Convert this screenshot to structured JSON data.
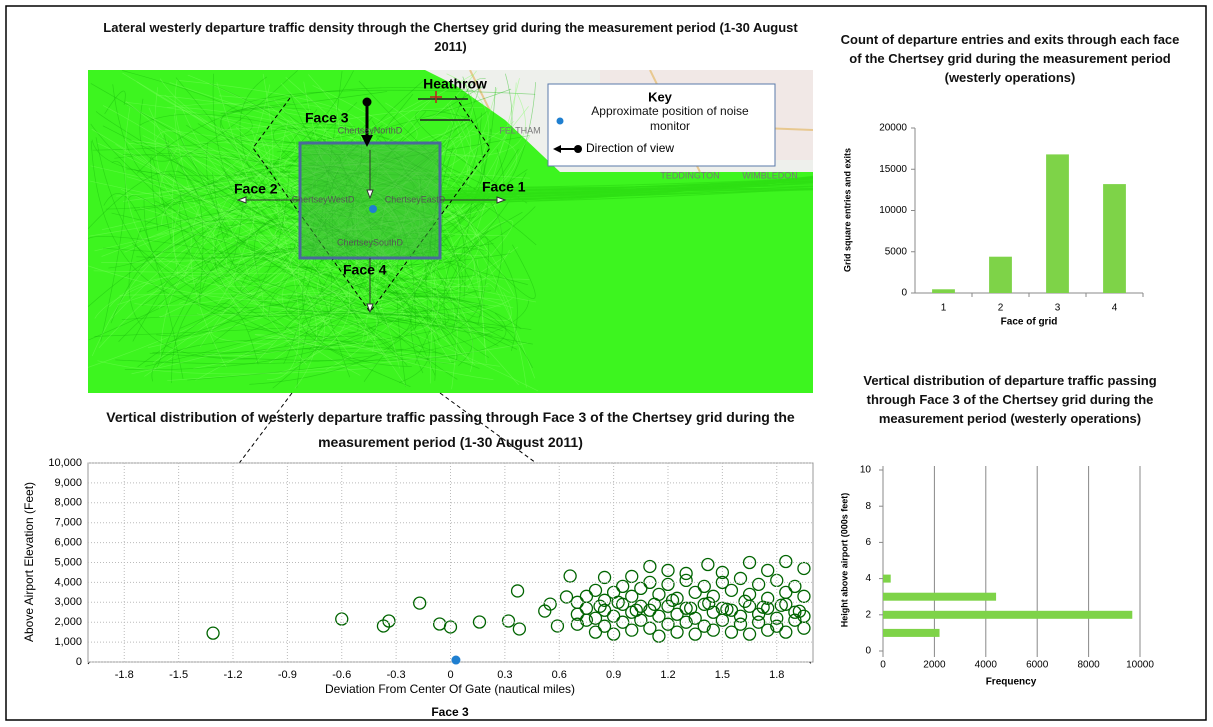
{
  "map": {
    "title": "Lateral westerly departure traffic density through the Chertsey grid during the measurement period (1-30 August 2011)",
    "airport": "Heathrow",
    "faces": [
      "Face 1",
      "Face 2",
      "Face 3",
      "Face 4"
    ],
    "gates": [
      "ChertseyNorthD",
      "ChertseyWestD",
      "ChertseyEastD",
      "ChertseySouthD"
    ],
    "places": [
      "FELTHAM",
      "TEDDINGTON",
      "WIMBLEDON"
    ],
    "key": {
      "title": "Key",
      "monitor": "Approximate position of noise monitor",
      "view": "Direction of view"
    }
  },
  "chart_data": [
    {
      "type": "bar",
      "title": "Count of departure entries and exits through each face of the Chertsey grid during the measurement period (westerly operations)",
      "x_label": "Face of grid",
      "y_label": "Grid square entries and exits",
      "categories": [
        "1",
        "2",
        "3",
        "4"
      ],
      "values": [
        450,
        4400,
        16800,
        13200
      ],
      "color": "#7ed348",
      "ylim": [
        0,
        20000
      ],
      "yticks": [
        0,
        5000,
        10000,
        15000,
        20000
      ]
    },
    {
      "type": "scatter",
      "title": "Vertical distribution of westerly departure traffic passing through Face 3 of the Chertsey grid during the measurement period (1-30 August 2011)",
      "x_label": "Deviation From Center Of Gate (nautical miles)",
      "y_label": "Above Airport Elevation (Feet)",
      "x": [
        -1.31,
        -0.6,
        -0.37,
        -0.34,
        -0.17,
        -0.06,
        0,
        0.16,
        0.32,
        0.37,
        0.38,
        0.52,
        0.55,
        0.59,
        0.64,
        0.66,
        0.7,
        0.7,
        0.7,
        0.75,
        0.75,
        0.75,
        0.8,
        0.8,
        0.8,
        0.85,
        0.85,
        0.85,
        0.9,
        0.9,
        0.9,
        0.95,
        0.95,
        0.95,
        1.0,
        1.0,
        1.0,
        1.05,
        1.05,
        1.05,
        1.1,
        1.1,
        1.1,
        1.15,
        1.15,
        1.15,
        1.2,
        1.2,
        1.2,
        1.25,
        1.25,
        1.25,
        1.3,
        1.3,
        1.3,
        1.35,
        1.35,
        1.35,
        1.4,
        1.4,
        1.4,
        1.45,
        1.45,
        1.45,
        1.5,
        1.5,
        1.5,
        1.55,
        1.55,
        1.55,
        1.6,
        1.6,
        1.6,
        1.65,
        1.65,
        1.65,
        1.7,
        1.7,
        1.7,
        1.75,
        1.75,
        1.75,
        1.8,
        1.8,
        1.8,
        1.85,
        1.85,
        1.85,
        1.9,
        1.9,
        1.9,
        1.95,
        1.95,
        1.95,
        0.825,
        0.925,
        1.025,
        1.125,
        1.225,
        1.325,
        1.425,
        1.525,
        1.625,
        1.725,
        1.825,
        1.925,
        1.0,
        1.2,
        1.42,
        1.5,
        1.65,
        1.85,
        1.75,
        1.3,
        0.85,
        1.95,
        1.1
      ],
      "values": [
        1450,
        2160,
        1810,
        2060,
        2960,
        1910,
        1760,
        2010,
        2060,
        3570,
        1660,
        2560,
        2910,
        1810,
        3270,
        4320,
        2400,
        3000,
        1900,
        2700,
        3300,
        2100,
        2200,
        3600,
        1500,
        2600,
        3100,
        1800,
        2300,
        3500,
        1400,
        2900,
        3800,
        2000,
        2500,
        3300,
        1600,
        2100,
        3700,
        2800,
        2600,
        4000,
        1700,
        2300,
        3400,
        1300,
        2800,
        3900,
        1900,
        2400,
        3200,
        1500,
        2700,
        4100,
        2000,
        2200,
        3500,
        1400,
        2900,
        3800,
        1800,
        2500,
        3300,
        1600,
        2100,
        4000,
        2700,
        2600,
        3600,
        1500,
        2300,
        4200,
        1900,
        2800,
        3400,
        1400,
        2400,
        3900,
        2000,
        2700,
        3200,
        1600,
        2200,
        4100,
        1800,
        2900,
        3500,
        1500,
        2500,
        3800,
        2100,
        2300,
        3300,
        1700,
        2800,
        3000,
        2600,
        2900,
        3100,
        2700,
        2950,
        2650,
        3050,
        2750,
        2850,
        2550,
        4300,
        4600,
        4900,
        4500,
        5000,
        5050,
        4600,
        4450,
        4250,
        4700,
        4800
      ],
      "color": "#006400",
      "marker_point": {
        "x": 0.03,
        "value": 100,
        "color": "#1f7fd0"
      },
      "xlim": [
        -2,
        2
      ],
      "xticks": [
        -1.8,
        -1.5,
        -1.2,
        -0.9,
        -0.6,
        -0.3,
        0,
        0.3,
        0.6,
        0.9,
        1.2,
        1.5,
        1.8
      ],
      "ylim": [
        0,
        10000
      ],
      "yticks": [
        0,
        {
          "value": 1000,
          "label": "1,000"
        },
        {
          "value": 2000,
          "label": "2,000"
        },
        {
          "value": 3000,
          "label": "3,000"
        },
        {
          "value": 4000,
          "label": "4,000"
        },
        {
          "value": 5000,
          "label": "5,000"
        },
        {
          "value": 6000,
          "label": "6,000"
        },
        {
          "value": 7000,
          "label": "7,000"
        },
        {
          "value": 8000,
          "label": "8,000"
        },
        {
          "value": 9000,
          "label": "9,000"
        },
        {
          "value": 10000,
          "label": "10,000"
        }
      ],
      "grid": true
    },
    {
      "type": "hbar",
      "title": "Vertical distribution of departure traffic passing through Face 3 of the Chertsey grid during the measurement period (westerly operations)",
      "x_label": "Frequency",
      "y_label": "Height above airport (000s feet)",
      "y": [
        1,
        2,
        3,
        4
      ],
      "values": [
        2200,
        9700,
        4400,
        300
      ],
      "color": "#7ed348",
      "xlim": [
        0,
        10000
      ],
      "xticks": [
        0,
        2000,
        4000,
        6000,
        8000,
        10000
      ],
      "ylim": [
        0,
        10
      ],
      "yticks": [
        0,
        2,
        4,
        6,
        8,
        10
      ],
      "grid": true
    }
  ],
  "caption": "Face 3"
}
